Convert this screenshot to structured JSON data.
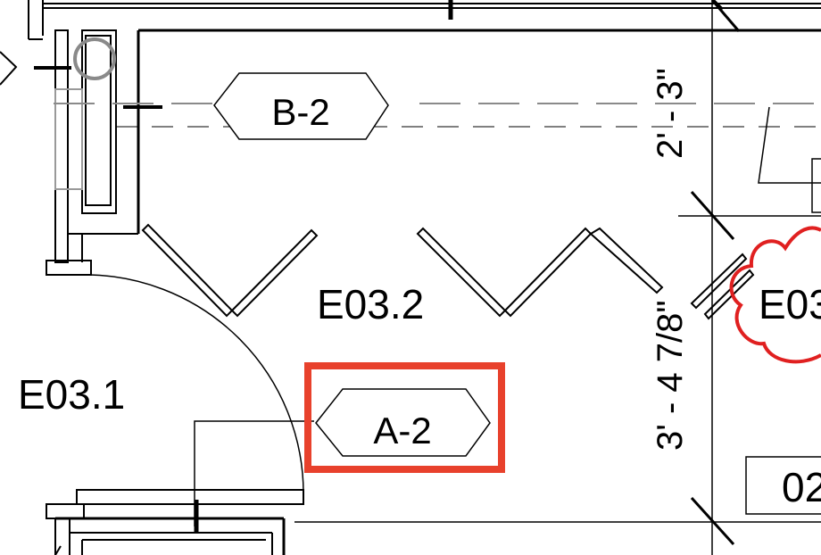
{
  "rooms": {
    "e03_2": "E03.2",
    "e03_1": "E03.1",
    "e03_clipped": "E03",
    "room_02_clipped": "02"
  },
  "tags": {
    "b2": "B-2",
    "a2": "A-2"
  },
  "dimensions": {
    "upper": "2' - 3\"",
    "lower": "3' - 4 7/8\""
  },
  "colors": {
    "highlight": "#e8412c",
    "revision_cloud": "#e02020",
    "line": "#000000",
    "grid_line": "#8a8a8a"
  }
}
